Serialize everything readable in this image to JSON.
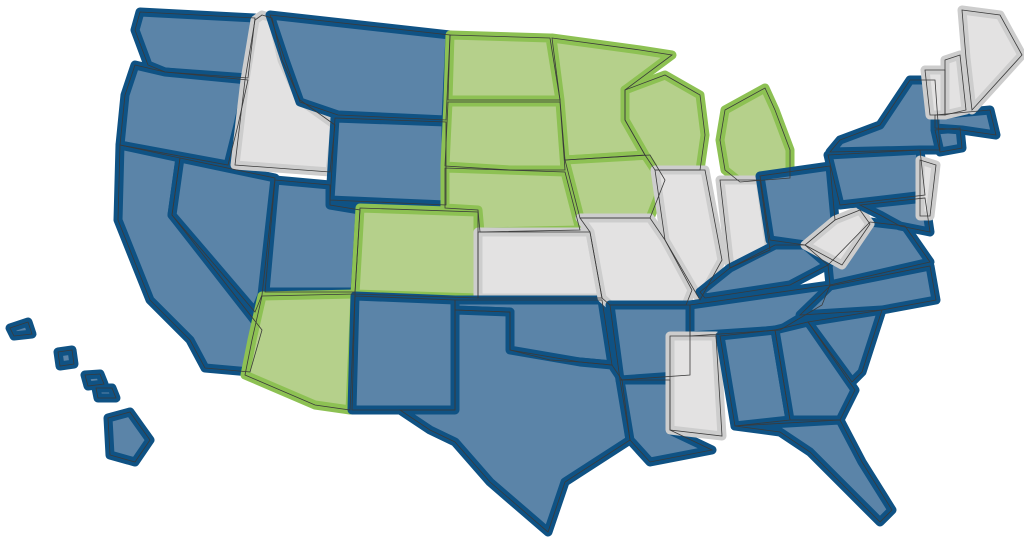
{
  "map": {
    "categories": {
      "blue": {
        "fill": "#5b84a8",
        "border": "#0f5284"
      },
      "green": {
        "fill": "#b5d08b",
        "border": "#8dc153"
      },
      "gray": {
        "fill": "#e3e2e2",
        "border": "#cdcdcd"
      }
    },
    "outline_color": "#3a3a3a",
    "state_category": {
      "WA": "blue",
      "OR": "blue",
      "CA": "blue",
      "NV": "blue",
      "ID": "gray",
      "MT": "blue",
      "WY": "blue",
      "UT": "blue",
      "CO": "green",
      "AZ": "green",
      "NM": "blue",
      "ND": "green",
      "SD": "green",
      "NE": "green",
      "KS": "gray",
      "OK": "blue",
      "TX": "blue",
      "MN": "green",
      "IA": "green",
      "MO": "gray",
      "WI": "green",
      "IL": "gray",
      "MI": "green",
      "IN": "gray",
      "OH": "blue",
      "KY": "blue",
      "TN": "blue",
      "AR": "blue",
      "LA": "blue",
      "MS": "gray",
      "AL": "blue",
      "GA": "blue",
      "FL": "blue",
      "SC": "blue",
      "NC": "blue",
      "VA": "blue",
      "WV": "gray",
      "PA": "blue",
      "NY": "blue",
      "MD": "blue",
      "NJ": "gray",
      "CT": "blue",
      "MA": "blue",
      "VT": "gray",
      "NH": "gray",
      "ME": "gray",
      "HI": "blue"
    }
  }
}
